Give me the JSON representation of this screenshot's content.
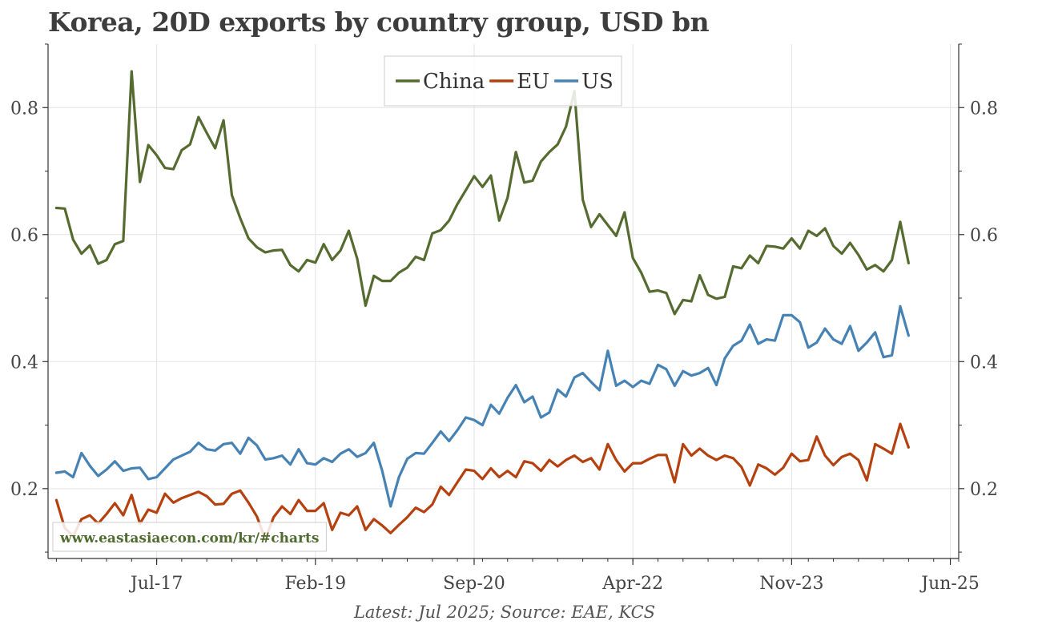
{
  "title": "Korea, 20D exports by country group, USD bn",
  "source": "Latest: Jul 2025; Source: EAE, KCS",
  "watermark": "www.eastasiaecon.com/kr/#charts",
  "colors": {
    "China": "#556b2f",
    "EU": "#b5410f",
    "US": "#4682b4"
  },
  "chart_data": {
    "type": "line",
    "title": "Korea, 20D exports by country group, USD bn",
    "xlabel": "",
    "ylabel": "",
    "x_range": [
      "2016-06",
      "2025-07"
    ],
    "x_ticks": [
      "Jul-17",
      "Feb-19",
      "Sep-20",
      "Apr-22",
      "Nov-23",
      "Jun-25"
    ],
    "x_tick_dates": [
      "2017-07",
      "2019-02",
      "2020-09",
      "2022-04",
      "2023-11",
      "2025-06"
    ],
    "ylim": [
      0.09,
      0.9
    ],
    "y_ticks": [
      0.2,
      0.4,
      0.6,
      0.8
    ],
    "y_axis_both_sides": true,
    "grid": true,
    "legend_position": "top-center",
    "start": "2016-07",
    "frequency": "monthly",
    "series": [
      {
        "name": "China",
        "values": [
          0.642,
          0.641,
          0.592,
          0.57,
          0.583,
          0.554,
          0.56,
          0.585,
          0.59,
          0.857,
          0.683,
          0.741,
          0.725,
          0.705,
          0.703,
          0.733,
          0.742,
          0.785,
          0.76,
          0.736,
          0.78,
          0.662,
          0.626,
          0.594,
          0.58,
          0.572,
          0.575,
          0.576,
          0.552,
          0.542,
          0.56,
          0.556,
          0.585,
          0.56,
          0.575,
          0.606,
          0.562,
          0.488,
          0.535,
          0.527,
          0.527,
          0.54,
          0.548,
          0.565,
          0.56,
          0.602,
          0.607,
          0.622,
          0.648,
          0.67,
          0.692,
          0.675,
          0.693,
          0.622,
          0.658,
          0.73,
          0.682,
          0.685,
          0.715,
          0.73,
          0.742,
          0.77,
          0.826,
          0.655,
          0.612,
          0.632,
          0.615,
          0.598,
          0.635,
          0.563,
          0.54,
          0.51,
          0.512,
          0.508,
          0.475,
          0.497,
          0.495,
          0.536,
          0.505,
          0.499,
          0.502,
          0.55,
          0.547,
          0.567,
          0.555,
          0.582,
          0.581,
          0.578,
          0.594,
          0.578,
          0.606,
          0.598,
          0.61,
          0.582,
          0.57,
          0.587,
          0.568,
          0.545,
          0.552,
          0.542,
          0.56,
          0.62,
          0.555
        ]
      },
      {
        "name": "EU",
        "values": [
          0.182,
          0.138,
          0.125,
          0.152,
          0.158,
          0.145,
          0.16,
          0.177,
          0.158,
          0.19,
          0.145,
          0.167,
          0.162,
          0.192,
          0.178,
          0.185,
          0.19,
          0.195,
          0.188,
          0.175,
          0.176,
          0.192,
          0.197,
          0.178,
          0.156,
          0.12,
          0.155,
          0.172,
          0.16,
          0.182,
          0.165,
          0.165,
          0.177,
          0.135,
          0.162,
          0.158,
          0.172,
          0.135,
          0.152,
          0.142,
          0.13,
          0.143,
          0.155,
          0.17,
          0.163,
          0.175,
          0.203,
          0.19,
          0.21,
          0.23,
          0.228,
          0.215,
          0.232,
          0.218,
          0.228,
          0.218,
          0.243,
          0.24,
          0.228,
          0.245,
          0.235,
          0.245,
          0.252,
          0.242,
          0.248,
          0.23,
          0.27,
          0.245,
          0.227,
          0.24,
          0.24,
          0.247,
          0.253,
          0.253,
          0.21,
          0.27,
          0.252,
          0.263,
          0.252,
          0.245,
          0.252,
          0.248,
          0.234,
          0.205,
          0.238,
          0.232,
          0.222,
          0.233,
          0.255,
          0.243,
          0.245,
          0.282,
          0.252,
          0.237,
          0.25,
          0.255,
          0.245,
          0.213,
          0.27,
          0.263,
          0.255,
          0.302,
          0.265
        ]
      },
      {
        "name": "US",
        "values": [
          0.225,
          0.227,
          0.218,
          0.256,
          0.236,
          0.22,
          0.23,
          0.243,
          0.228,
          0.232,
          0.233,
          0.215,
          0.218,
          0.232,
          0.246,
          0.252,
          0.258,
          0.272,
          0.262,
          0.26,
          0.27,
          0.272,
          0.255,
          0.28,
          0.268,
          0.246,
          0.248,
          0.252,
          0.238,
          0.262,
          0.24,
          0.238,
          0.248,
          0.242,
          0.255,
          0.262,
          0.25,
          0.256,
          0.272,
          0.228,
          0.172,
          0.218,
          0.247,
          0.256,
          0.255,
          0.272,
          0.29,
          0.275,
          0.292,
          0.312,
          0.308,
          0.3,
          0.332,
          0.318,
          0.343,
          0.363,
          0.336,
          0.345,
          0.312,
          0.32,
          0.356,
          0.345,
          0.375,
          0.382,
          0.368,
          0.355,
          0.417,
          0.362,
          0.37,
          0.36,
          0.37,
          0.365,
          0.395,
          0.388,
          0.362,
          0.385,
          0.378,
          0.382,
          0.39,
          0.363,
          0.405,
          0.425,
          0.433,
          0.458,
          0.428,
          0.435,
          0.433,
          0.473,
          0.473,
          0.462,
          0.422,
          0.43,
          0.452,
          0.435,
          0.428,
          0.456,
          0.417,
          0.43,
          0.446,
          0.407,
          0.41,
          0.487,
          0.441
        ]
      }
    ]
  }
}
